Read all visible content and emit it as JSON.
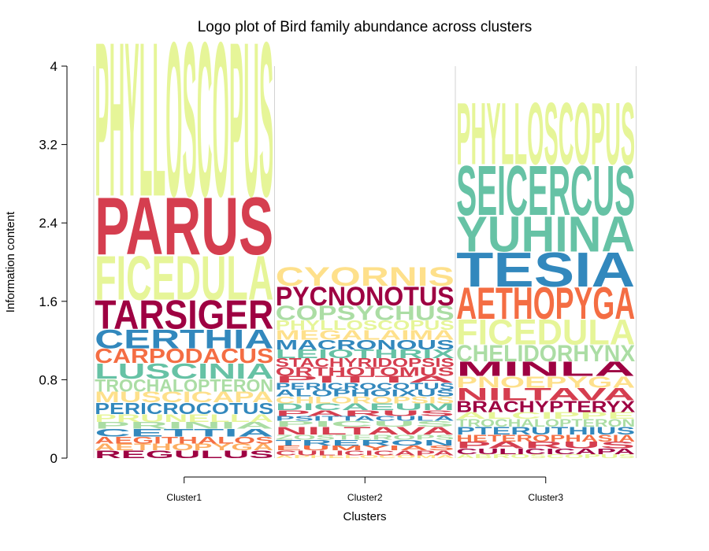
{
  "chart_data": {
    "type": "logo",
    "title": "Logo plot of Bird family abundance across clusters",
    "xlabel": "Clusters",
    "ylabel": "Information content",
    "ylim": [
      0,
      4
    ],
    "yticks": [
      "0",
      "0.8",
      "1.6",
      "2.4",
      "3.2",
      "4"
    ],
    "ytick_values": [
      0,
      0.8,
      1.6,
      2.4,
      3.2,
      4
    ],
    "grid": false,
    "legend": "none",
    "categories": [
      "Cluster1",
      "Cluster2",
      "Cluster3"
    ],
    "clusters": [
      {
        "name": "Cluster1",
        "stack": [
          {
            "label": "REGULUS",
            "color": "#9e0142",
            "value": 0.08
          },
          {
            "label": "AETHOPYGA",
            "color": "#fdae61",
            "value": 0.07
          },
          {
            "label": "AEGITHALOS",
            "color": "#f46d43",
            "value": 0.07
          },
          {
            "label": "CETTIA",
            "color": "#3288bd",
            "value": 0.08
          },
          {
            "label": "PRINIA",
            "color": "#abdda4",
            "value": 0.07
          },
          {
            "label": "PRUNELLA",
            "color": "#e6f598",
            "value": 0.08
          },
          {
            "label": "PERICROCOTUS",
            "color": "#3288bd",
            "value": 0.12
          },
          {
            "label": "MUSCICAPA",
            "color": "#fee08b",
            "value": 0.11
          },
          {
            "label": "TROCHALOPTERON",
            "color": "#abdda4",
            "value": 0.13
          },
          {
            "label": "LUSCINIA",
            "color": "#66c2a5",
            "value": 0.16
          },
          {
            "label": "CARPODACUS",
            "color": "#f46d43",
            "value": 0.15
          },
          {
            "label": "CERTHIA",
            "color": "#3288bd",
            "value": 0.2
          },
          {
            "label": "TARSIGER",
            "color": "#9e0142",
            "value": 0.3
          },
          {
            "label": "FICEDULA",
            "color": "#e6f598",
            "value": 0.46
          },
          {
            "label": "PARUS",
            "color": "#d53e4f",
            "value": 0.6
          },
          {
            "label": "PHYLLOSCOPUS",
            "color": "#e6f598",
            "value": 1.62
          }
        ]
      },
      {
        "name": "Cluster2",
        "stack": [
          {
            "label": "APHELOCOMA",
            "color": "#fee08b",
            "value": 0.03
          },
          {
            "label": "CULICICAPA",
            "color": "#d53e4f",
            "value": 0.05
          },
          {
            "label": "EUMYIAS",
            "color": "#f46d43",
            "value": 0.05
          },
          {
            "label": "TRERON",
            "color": "#3288bd",
            "value": 0.06
          },
          {
            "label": "ZOSTEROPS",
            "color": "#abdda4",
            "value": 0.05
          },
          {
            "label": "NILTAVA",
            "color": "#d53e4f",
            "value": 0.08
          },
          {
            "label": "PICUS",
            "color": "#abdda4",
            "value": 0.06
          },
          {
            "label": "PSITTACULA",
            "color": "#3288bd",
            "value": 0.05
          },
          {
            "label": "PARUS",
            "color": "#d53e4f",
            "value": 0.06
          },
          {
            "label": "DICAEUM",
            "color": "#66c2a5",
            "value": 0.07
          },
          {
            "label": "CHLOROPSIS",
            "color": "#fee08b",
            "value": 0.07
          },
          {
            "label": "ALOPHOIXUS",
            "color": "#3288bd",
            "value": 0.07
          },
          {
            "label": "PERICROCOTUS",
            "color": "#3288bd",
            "value": 0.07
          },
          {
            "label": "PITTA",
            "color": "#d53e4f",
            "value": 0.07
          },
          {
            "label": "ORTHOTOMUS",
            "color": "#d53e4f",
            "value": 0.09
          },
          {
            "label": "STACHYRIDOPSIS",
            "color": "#d53e4f",
            "value": 0.09
          },
          {
            "label": "LEIOTHRIX",
            "color": "#66c2a5",
            "value": 0.09
          },
          {
            "label": "MACRONOUS",
            "color": "#3288bd",
            "value": 0.1
          },
          {
            "label": "MEGALAIMA",
            "color": "#fee08b",
            "value": 0.1
          },
          {
            "label": "PHYLLOSCOPUS",
            "color": "#e6f598",
            "value": 0.1
          },
          {
            "label": "COPSYCHUS",
            "color": "#abdda4",
            "value": 0.15
          },
          {
            "label": "PYCNONOTUS",
            "color": "#9e0142",
            "value": 0.2
          },
          {
            "label": "CYORNIS",
            "color": "#fee08b",
            "value": 0.2
          }
        ]
      },
      {
        "name": "Cluster3",
        "stack": [
          {
            "label": "ABROSCOPUS",
            "color": "#e6f598",
            "value": 0.04
          },
          {
            "label": "CULICICAPA",
            "color": "#9e0142",
            "value": 0.06
          },
          {
            "label": "PARUS",
            "color": "#d53e4f",
            "value": 0.07
          },
          {
            "label": "HETEROPHASIA",
            "color": "#f46d43",
            "value": 0.07
          },
          {
            "label": "PTERUTHIUS",
            "color": "#3288bd",
            "value": 0.08
          },
          {
            "label": "TROCHALOPTERON",
            "color": "#abdda4",
            "value": 0.08
          },
          {
            "label": "ALCIPPE",
            "color": "#e6f598",
            "value": 0.07
          },
          {
            "label": "BRACHYPTERYX",
            "color": "#9e0142",
            "value": 0.12
          },
          {
            "label": "NILTAVA",
            "color": "#d53e4f",
            "value": 0.13
          },
          {
            "label": "PNOEPYGA",
            "color": "#fee08b",
            "value": 0.12
          },
          {
            "label": "MINLA",
            "color": "#9e0142",
            "value": 0.15
          },
          {
            "label": "CHELIDORHYNX",
            "color": "#abdda4",
            "value": 0.17
          },
          {
            "label": "FICEDULA",
            "color": "#e6f598",
            "value": 0.26
          },
          {
            "label": "AETHOPYGA",
            "color": "#f46d43",
            "value": 0.33
          },
          {
            "label": "TESIA",
            "color": "#3288bd",
            "value": 0.36
          },
          {
            "label": "YUHINA",
            "color": "#66c2a5",
            "value": 0.37
          },
          {
            "label": "SEICERCUS",
            "color": "#66c2a5",
            "value": 0.52
          },
          {
            "label": "PHYLLOSCOPUS",
            "color": "#e6f598",
            "value": 0.65
          }
        ]
      }
    ]
  }
}
